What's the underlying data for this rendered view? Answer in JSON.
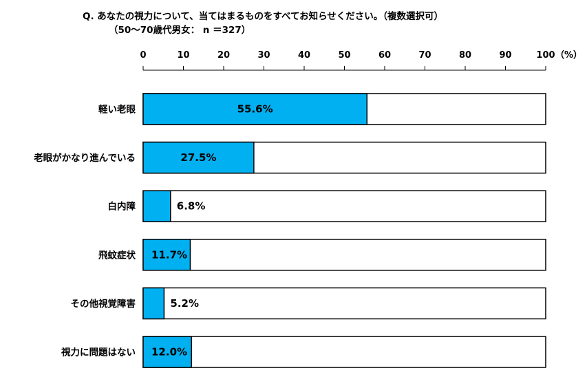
{
  "header": {
    "question": "Q.  あなたの視力について、当てはまるものをすべてお知らせください。（複数選択可）",
    "sample": "（50～70歳代男女： n ＝327）"
  },
  "chart_data": {
    "type": "bar",
    "orientation": "horizontal",
    "title": "Q.  あなたの視力について、当てはまるものをすべてお知らせください。（複数選択可）",
    "subtitle": "（50～70歳代男女： n ＝327）",
    "categories": [
      "軽い老眼",
      "老眼がかなり進んでいる",
      "白内障",
      "飛蚊症状",
      "その他視覚障害",
      "視力に問題はない"
    ],
    "values": [
      55.6,
      27.5,
      6.8,
      11.7,
      5.2,
      12.0
    ],
    "data_labels": [
      "55.6%",
      "27.5%",
      "6.8%",
      "11.7%",
      "5.2%",
      "12.0%"
    ],
    "xlim": [
      0,
      100
    ],
    "x_ticks": [
      "0",
      "10",
      "20",
      "30",
      "40",
      "50",
      "60",
      "70",
      "80",
      "90",
      "100"
    ],
    "x_unit": "（%）",
    "axis_position": "top",
    "grid": false,
    "bar_color": "#00b0f0",
    "bar_background": "#ffffff",
    "bar_border": "#000000"
  }
}
